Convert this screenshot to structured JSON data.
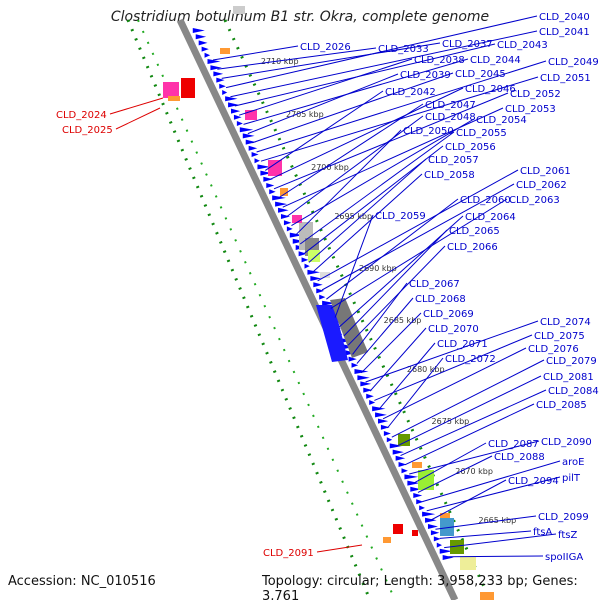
{
  "title": "Clostridium botulinum B1 str. Okra, complete genome",
  "footer": {
    "accession": "Accession: NC_010516",
    "topology": "Topology: circular; Length: 3,958,233 bp; Genes: 3,761"
  },
  "colors": {
    "gene_label": "#0000cc",
    "highlight_label": "#dd0000",
    "backbone": "#888888",
    "gc_dots": "#118811",
    "forward_genes": "#0000ff"
  },
  "ticks": [
    "2710 kbp",
    "2705 kbp",
    "2700 kbp",
    "2695 kbp",
    "2690 kbp",
    "2685 kbp",
    "2680 kbp",
    "2675 kbp",
    "2670 kbp",
    "2665 kbp"
  ],
  "left_labels": [
    "CLD_2024",
    "CLD_2025",
    "CLD_2091"
  ],
  "right_labels": [
    "CLD_2026",
    "CLD_2033",
    "CLD_2037",
    "CLD_2040",
    "CLD_2041",
    "CLD_2043",
    "CLD_2038",
    "CLD_2044",
    "CLD_2039",
    "CLD_2045",
    "CLD_2049",
    "CLD_2051",
    "CLD_2042",
    "CLD_2046",
    "CLD_2052",
    "CLD_2047",
    "CLD_2053",
    "CLD_2048",
    "CLD_2054",
    "CLD_2050",
    "CLD_2055",
    "CLD_2056",
    "CLD_2057",
    "CLD_2058",
    "CLD_2061",
    "CLD_2062",
    "CLD_2060",
    "CLD_2063",
    "CLD_2059",
    "CLD_2064",
    "CLD_2065",
    "CLD_2066",
    "CLD_2067",
    "CLD_2068",
    "CLD_2069",
    "CLD_2074",
    "CLD_2070",
    "CLD_2075",
    "CLD_2071",
    "CLD_2076",
    "CLD_2072",
    "CLD_2079",
    "CLD_2081",
    "CLD_2084",
    "CLD_2085",
    "CLD_2090",
    "CLD_2087",
    "CLD_2088",
    "aroE",
    "pilT",
    "CLD_2094",
    "CLD_2099",
    "ftsA",
    "ftsZ",
    "spoIIGA"
  ]
}
